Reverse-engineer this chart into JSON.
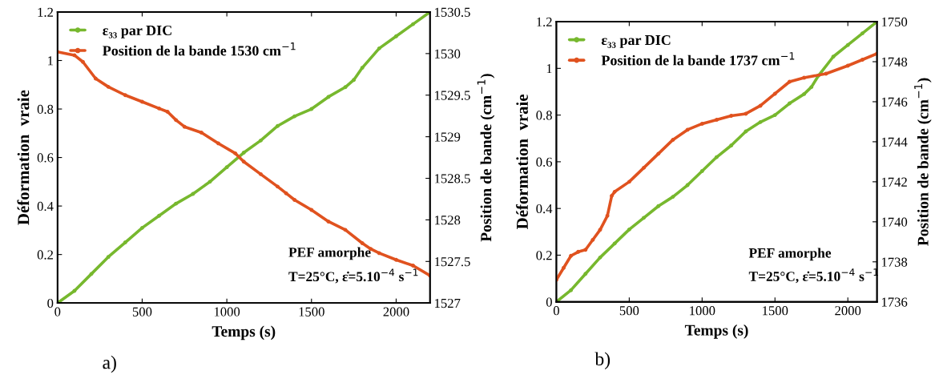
{
  "chart_data": [
    {
      "type": "line",
      "xlabel": "Temps (s)",
      "ylabel": "Déformation  vraie",
      "y2label": "Position de bande (cm$^{−1}$)",
      "xlim": [
        0,
        2200
      ],
      "xticks": [
        0,
        500,
        1000,
        1500,
        2000
      ],
      "ylim": [
        0,
        1.2
      ],
      "yticks": [
        0,
        0.2,
        0.4,
        0.6,
        0.8,
        1,
        1.2
      ],
      "y2lim": [
        1527,
        1530.5
      ],
      "y2ticks": [
        1527,
        1527.5,
        1528,
        1528.5,
        1529,
        1529.5,
        1530,
        1530.5
      ],
      "legend": "top left",
      "marker": "circle",
      "grid": false,
      "annotations": [
        "PEF amorphe",
        "T=25°C, ε̇=5.10$^{−4}$ s$^{−1}$",
        "a)"
      ],
      "series": [
        {
          "name": "ε₃₃ par DIC",
          "color": "#77b82e",
          "x": [
            0,
            100,
            200,
            300,
            400,
            500,
            600,
            700,
            800,
            900,
            1000,
            1100,
            1200,
            1300,
            1400,
            1500,
            1600,
            1700,
            1750,
            1800,
            1900,
            2000,
            2100,
            2200
          ],
          "values": [
            0,
            0.05,
            0.12,
            0.19,
            0.25,
            0.31,
            0.36,
            0.41,
            0.45,
            0.5,
            0.56,
            0.62,
            0.67,
            0.73,
            0.77,
            0.8,
            0.85,
            0.89,
            0.92,
            0.97,
            1.05,
            1.1,
            1.15,
            1.2
          ]
        },
        {
          "name": "Position de la bande 1530 cm$^{−1}$",
          "color": "#e0521f",
          "axis": "y2",
          "x": [
            0,
            100,
            150,
            225,
            300,
            400,
            500,
            600,
            650,
            700,
            750,
            850,
            950,
            1050,
            1100,
            1200,
            1300,
            1350,
            1400,
            1500,
            1600,
            1700,
            1800,
            1850,
            1900,
            2000,
            2100,
            2200
          ],
          "values": [
            1530.02,
            1529.98,
            1529.9,
            1529.7,
            1529.6,
            1529.5,
            1529.42,
            1529.34,
            1529.3,
            1529.2,
            1529.12,
            1529.05,
            1528.92,
            1528.8,
            1528.7,
            1528.55,
            1528.4,
            1528.32,
            1528.24,
            1528.12,
            1527.98,
            1527.88,
            1527.72,
            1527.65,
            1527.6,
            1527.52,
            1527.45,
            1527.33
          ]
        }
      ]
    },
    {
      "type": "line",
      "xlabel": "Temps (s)",
      "ylabel": "Déformation  vraie",
      "y2label": "Position de bande (cm$^{−1}$)",
      "xlim": [
        0,
        2200
      ],
      "xticks": [
        0,
        500,
        1000,
        1500,
        2000
      ],
      "ylim": [
        0,
        1.2
      ],
      "yticks": [
        0,
        0.2,
        0.4,
        0.6,
        0.8,
        1,
        1.2
      ],
      "y2lim": [
        1736,
        1750
      ],
      "y2ticks": [
        1736,
        1738,
        1740,
        1742,
        1744,
        1746,
        1748,
        1750
      ],
      "legend": "top left",
      "marker": "circle",
      "grid": false,
      "annotations": [
        "PEF amorphe",
        "T=25°C, ε̇=5.10$^{−4}$ s$^{−1}$",
        "b)"
      ],
      "series": [
        {
          "name": "ε₃₃ par DIC",
          "color": "#77b82e",
          "x": [
            0,
            100,
            200,
            300,
            400,
            500,
            600,
            700,
            800,
            900,
            1000,
            1100,
            1200,
            1300,
            1400,
            1500,
            1600,
            1700,
            1750,
            1800,
            1900,
            2000,
            2100,
            2200
          ],
          "values": [
            0,
            0.05,
            0.12,
            0.19,
            0.25,
            0.31,
            0.36,
            0.41,
            0.45,
            0.5,
            0.56,
            0.62,
            0.67,
            0.73,
            0.77,
            0.8,
            0.85,
            0.89,
            0.92,
            0.97,
            1.05,
            1.1,
            1.15,
            1.2
          ]
        },
        {
          "name": "Position de la bande 1737 cm$^{−1}$",
          "color": "#e0521f",
          "axis": "y2",
          "x": [
            0,
            50,
            100,
            150,
            200,
            250,
            300,
            350,
            380,
            400,
            500,
            600,
            700,
            800,
            900,
            1000,
            1100,
            1200,
            1300,
            1400,
            1500,
            1600,
            1700,
            1850,
            2000,
            2100,
            2200
          ],
          "values": [
            1737.1,
            1737.7,
            1738.3,
            1738.5,
            1738.6,
            1739.1,
            1739.6,
            1740.3,
            1741.3,
            1741.5,
            1742,
            1742.7,
            1743.4,
            1744.1,
            1744.6,
            1744.9,
            1745.1,
            1745.3,
            1745.4,
            1745.8,
            1746.4,
            1747,
            1747.2,
            1747.4,
            1747.8,
            1748.1,
            1748.4
          ]
        }
      ]
    }
  ]
}
